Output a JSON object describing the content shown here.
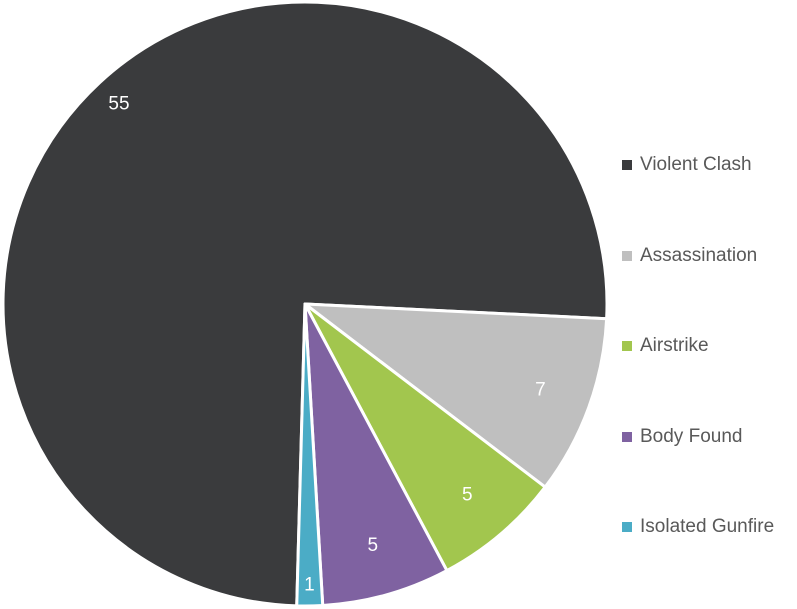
{
  "chart_data": {
    "type": "pie",
    "title": "",
    "categories": [
      "Violent Clash",
      "Assassination",
      "Airstrike",
      "Body Found",
      "Isolated Gunfire"
    ],
    "values": [
      55,
      7,
      5,
      5,
      1
    ],
    "colors": [
      "#3a3b3d",
      "#bfbfbf",
      "#a2c64e",
      "#7f62a1",
      "#4bacc6"
    ],
    "label_colors": [
      "#ffffff",
      "#ffffff",
      "#ffffff",
      "#ffffff",
      "#ffffff"
    ],
    "start_angle_deg": 0,
    "direction": "clockwise",
    "legend_position": "right",
    "legend": [
      "Violent Clash",
      "Assassination",
      "Airstrike",
      "Body Found",
      "Isolated Gunfire"
    ]
  }
}
